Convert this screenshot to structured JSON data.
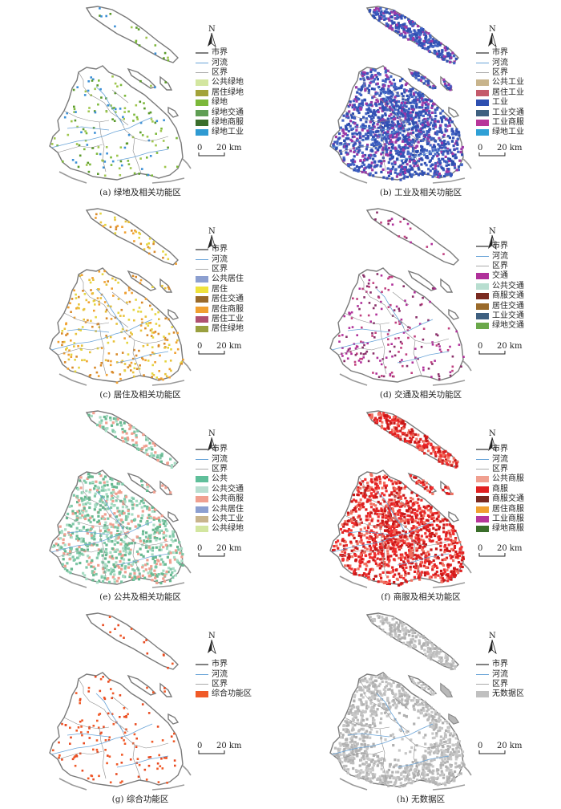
{
  "scale": {
    "zero": "0",
    "distance": "20 km"
  },
  "north_label": "N",
  "panels": [
    {
      "caption": "(a) 绿地及相关功能区",
      "dot_count": 170,
      "dot_region": "all",
      "dot_colors": [
        "#7cb83a",
        "#5a9a2a",
        "#3b8fd6",
        "#9fc64d"
      ],
      "legend": [
        {
          "label": "市界",
          "type": "line",
          "color": "#808080"
        },
        {
          "label": "河流",
          "type": "thin",
          "color": "#6aa4d8"
        },
        {
          "label": "区界",
          "type": "thin",
          "color": "#aaaaaa"
        },
        {
          "label": "公共绿地",
          "type": "box",
          "color": "#d3e6a0"
        },
        {
          "label": "居住绿地",
          "type": "box",
          "color": "#a3a33a"
        },
        {
          "label": "绿地",
          "type": "box",
          "color": "#7cb83a"
        },
        {
          "label": "绿地交通",
          "type": "box",
          "color": "#5f9e53"
        },
        {
          "label": "绿地商服",
          "type": "box",
          "color": "#3b6e2b"
        },
        {
          "label": "绿地工业",
          "type": "box",
          "color": "#2f9ad2"
        }
      ]
    },
    {
      "caption": "(b) 工业及相关功能区",
      "dot_count": 1800,
      "dot_region": "dense",
      "dot_colors": [
        "#2e4fb0",
        "#3653b8",
        "#9b3aa8",
        "#4365c4"
      ],
      "legend": [
        {
          "label": "市界",
          "type": "line",
          "color": "#808080"
        },
        {
          "label": "河流",
          "type": "thin",
          "color": "#6aa4d8"
        },
        {
          "label": "区界",
          "type": "thin",
          "color": "#aaaaaa"
        },
        {
          "label": "公共工业",
          "type": "box",
          "color": "#c8b48c"
        },
        {
          "label": "居住工业",
          "type": "box",
          "color": "#c45a6a"
        },
        {
          "label": "工业",
          "type": "box",
          "color": "#2e4fb0"
        },
        {
          "label": "工业交通",
          "type": "box",
          "color": "#3e6080"
        },
        {
          "label": "工业商服",
          "type": "box",
          "color": "#b8359a"
        },
        {
          "label": "绿地工业",
          "type": "box",
          "color": "#2fa0d6"
        }
      ]
    },
    {
      "caption": "(c) 居住及相关功能区",
      "dot_count": 320,
      "dot_region": "all",
      "dot_colors": [
        "#e8c23a",
        "#f0a030",
        "#e5d540",
        "#d98a2a"
      ],
      "legend": [
        {
          "label": "市界",
          "type": "line",
          "color": "#808080"
        },
        {
          "label": "河流",
          "type": "thin",
          "color": "#6aa4d8"
        },
        {
          "label": "区界",
          "type": "thin",
          "color": "#aaaaaa"
        },
        {
          "label": "公共居住",
          "type": "box",
          "color": "#8c9fd0"
        },
        {
          "label": "居住",
          "type": "box",
          "color": "#efe23c"
        },
        {
          "label": "居住交通",
          "type": "box",
          "color": "#9a6a2a"
        },
        {
          "label": "居住商服",
          "type": "box",
          "color": "#f0a030"
        },
        {
          "label": "居住工业",
          "type": "box",
          "color": "#b05070"
        },
        {
          "label": "居住绿地",
          "type": "box",
          "color": "#9aa040"
        }
      ]
    },
    {
      "caption": "(d) 交通及相关功能区",
      "dot_count": 220,
      "dot_region": "all",
      "dot_colors": [
        "#b0309a",
        "#c04080",
        "#8a2f6a"
      ],
      "legend": [
        {
          "label": "市界",
          "type": "line",
          "color": "#808080"
        },
        {
          "label": "河流",
          "type": "thin",
          "color": "#6aa4d8"
        },
        {
          "label": "区界",
          "type": "thin",
          "color": "#aaaaaa"
        },
        {
          "label": "交通",
          "type": "box",
          "color": "#b0309a"
        },
        {
          "label": "公共交通",
          "type": "box",
          "color": "#b8ded0"
        },
        {
          "label": "商服交通",
          "type": "box",
          "color": "#7a2a20"
        },
        {
          "label": "居住交通",
          "type": "box",
          "color": "#9a6a2a"
        },
        {
          "label": "工业交通",
          "type": "box",
          "color": "#3e6080"
        },
        {
          "label": "绿地交通",
          "type": "box",
          "color": "#6aa84a"
        }
      ]
    },
    {
      "caption": "(e) 公共及相关功能区",
      "dot_count": 900,
      "dot_region": "all",
      "dot_colors": [
        "#7fc8a8",
        "#a8dcc4",
        "#f0a090",
        "#68b890"
      ],
      "legend": [
        {
          "label": "市界",
          "type": "line",
          "color": "#808080"
        },
        {
          "label": "河流",
          "type": "thin",
          "color": "#6aa4d8"
        },
        {
          "label": "区界",
          "type": "thin",
          "color": "#aaaaaa"
        },
        {
          "label": "公共",
          "type": "box",
          "color": "#5fbf9a"
        },
        {
          "label": "公共交通",
          "type": "box",
          "color": "#b8ded0"
        },
        {
          "label": "公共商服",
          "type": "box",
          "color": "#f0a090"
        },
        {
          "label": "公共居住",
          "type": "box",
          "color": "#8c9fd0"
        },
        {
          "label": "公共工业",
          "type": "box",
          "color": "#c8b48c"
        },
        {
          "label": "公共绿地",
          "type": "box",
          "color": "#d3e6a0"
        }
      ]
    },
    {
      "caption": "(f) 商服及相关功能区",
      "dot_count": 1500,
      "dot_region": "dense",
      "dot_colors": [
        "#e02020",
        "#f03030",
        "#c81818",
        "#f07060"
      ],
      "legend": [
        {
          "label": "市界",
          "type": "line",
          "color": "#808080"
        },
        {
          "label": "河流",
          "type": "thin",
          "color": "#6aa4d8"
        },
        {
          "label": "区界",
          "type": "thin",
          "color": "#aaaaaa"
        },
        {
          "label": "公共商服",
          "type": "box",
          "color": "#f0a090"
        },
        {
          "label": "商服",
          "type": "box",
          "color": "#e02020"
        },
        {
          "label": "商服交通",
          "type": "box",
          "color": "#7a2a20"
        },
        {
          "label": "居住商服",
          "type": "box",
          "color": "#f0a030"
        },
        {
          "label": "工业商服",
          "type": "box",
          "color": "#b8359a"
        },
        {
          "label": "绿地商服",
          "type": "box",
          "color": "#3b6e2b"
        }
      ]
    },
    {
      "caption": "(g) 综合功能区",
      "dot_count": 150,
      "dot_region": "all",
      "dot_colors": [
        "#f05a28",
        "#e84a20"
      ],
      "legend": [
        {
          "label": "市界",
          "type": "line",
          "color": "#808080"
        },
        {
          "label": "河流",
          "type": "thin",
          "color": "#6aa4d8"
        },
        {
          "label": "区界",
          "type": "thin",
          "color": "#aaaaaa"
        },
        {
          "label": "综合功能区",
          "type": "box",
          "color": "#f05a28"
        }
      ]
    },
    {
      "caption": "(h) 无数据区",
      "dot_count": 1300,
      "dot_region": "edge",
      "dot_colors": [
        "#bdbdbd",
        "#c8c8c8",
        "#b0b0b0"
      ],
      "legend": [
        {
          "label": "市界",
          "type": "line",
          "color": "#808080"
        },
        {
          "label": "河流",
          "type": "thin",
          "color": "#6aa4d8"
        },
        {
          "label": "区界",
          "type": "thin",
          "color": "#aaaaaa"
        },
        {
          "label": "无数据区",
          "type": "box",
          "color": "#c0c0c0"
        }
      ]
    }
  ]
}
